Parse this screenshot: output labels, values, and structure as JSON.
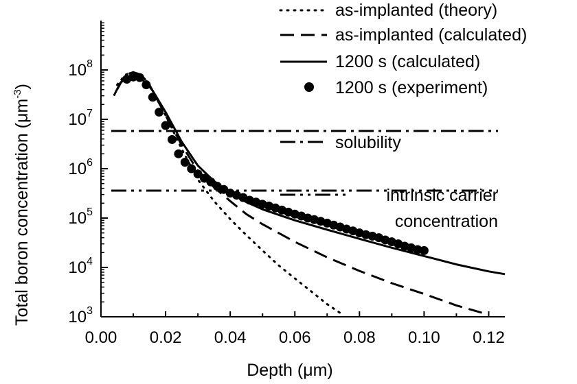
{
  "chart_data": {
    "type": "line",
    "xlabel": "Depth (μm)",
    "ylabel": "Total boron concentration (μm⁻³)",
    "xlim": [
      0.0,
      0.125
    ],
    "ylim_log10": [
      3,
      9
    ],
    "y_scale": "log",
    "x_ticks": [
      0.0,
      0.02,
      0.04,
      0.06,
      0.08,
      0.1,
      0.12
    ],
    "x_tick_labels": [
      "0.00",
      "0.02",
      "0.04",
      "0.06",
      "0.08",
      "0.10",
      "0.12"
    ],
    "y_ticks": [
      1000,
      10000,
      100000,
      1000000,
      10000000,
      100000000
    ],
    "y_tick_labels": [
      {
        "base": "10",
        "exp": "3"
      },
      {
        "base": "10",
        "exp": "4"
      },
      {
        "base": "10",
        "exp": "5"
      },
      {
        "base": "10",
        "exp": "6"
      },
      {
        "base": "10",
        "exp": "7"
      },
      {
        "base": "10",
        "exp": "8"
      }
    ],
    "grid": false,
    "legend_position": "top-right",
    "series": [
      {
        "name": "as-implanted (theory)",
        "style": "dotted",
        "x": [
          0.005,
          0.0075,
          0.01,
          0.0125,
          0.015,
          0.02,
          0.025,
          0.03,
          0.035,
          0.04,
          0.045,
          0.05,
          0.055,
          0.06,
          0.065,
          0.07,
          0.074
        ],
        "y": [
          50000000,
          80000000,
          90000000,
          80000000,
          50000000,
          12000000,
          2500000,
          600000,
          220000,
          95000,
          45000,
          22000,
          11000,
          6000,
          3300,
          1800,
          1200
        ]
      },
      {
        "name": "as-implanted (calculated)",
        "style": "dashed",
        "x": [
          0.005,
          0.0075,
          0.01,
          0.0125,
          0.015,
          0.02,
          0.025,
          0.03,
          0.035,
          0.04,
          0.045,
          0.05,
          0.06,
          0.07,
          0.08,
          0.09,
          0.1,
          0.11,
          0.12
        ],
        "y": [
          40000000,
          80000000,
          90000000,
          80000000,
          50000000,
          12000000,
          3000000,
          900000,
          420000,
          220000,
          120000,
          75000,
          33000,
          16000,
          8500,
          4800,
          2900,
          1700,
          1100
        ]
      },
      {
        "name": "1200 s (calculated)",
        "style": "solid",
        "x": [
          0.004,
          0.006,
          0.008,
          0.01,
          0.012,
          0.014,
          0.016,
          0.02,
          0.025,
          0.03,
          0.035,
          0.04,
          0.045,
          0.05,
          0.06,
          0.07,
          0.08,
          0.09,
          0.1,
          0.11,
          0.12,
          0.125
        ],
        "y": [
          30000000,
          55000000,
          68000000,
          72000000,
          68000000,
          55000000,
          38000000,
          14000000,
          3500000,
          1150000,
          560000,
          320000,
          210000,
          150000,
          90000,
          58000,
          38000,
          25000,
          17000,
          11500,
          8300,
          7300
        ]
      },
      {
        "name": "1200 s (experiment)",
        "style": "markers",
        "x": [
          0.008,
          0.01,
          0.012,
          0.014,
          0.016,
          0.018,
          0.02,
          0.022,
          0.024,
          0.026,
          0.028,
          0.03,
          0.032,
          0.034,
          0.036,
          0.038,
          0.04,
          0.042,
          0.044,
          0.046,
          0.048,
          0.05,
          0.052,
          0.054,
          0.056,
          0.058,
          0.06,
          0.062,
          0.064,
          0.066,
          0.068,
          0.07,
          0.072,
          0.074,
          0.076,
          0.078,
          0.08,
          0.082,
          0.084,
          0.086,
          0.088,
          0.09,
          0.092,
          0.094,
          0.096,
          0.098,
          0.1
        ],
        "y": [
          65000000,
          72000000,
          70000000,
          50000000,
          28000000,
          14000000,
          7500000,
          3900000,
          2000000,
          1350000,
          1000000,
          780000,
          640000,
          540000,
          440000,
          380000,
          320000,
          290000,
          260000,
          230000,
          210000,
          190000,
          175000,
          160000,
          145000,
          132000,
          120000,
          110000,
          100000,
          93000,
          86000,
          79000,
          72000,
          66000,
          60000,
          55000,
          50000,
          46000,
          43000,
          40000,
          36000,
          33000,
          30000,
          27000,
          25000,
          23000,
          22000
        ]
      }
    ],
    "reference_lines": [
      {
        "name": "solubility",
        "style": "dashdot",
        "y": 5800000
      },
      {
        "name": "intrinsic carrier concentration",
        "style": "dashdotdot",
        "y": 360000
      }
    ]
  },
  "legend": {
    "entries": [
      {
        "label": "as-implanted (theory)",
        "style": "dotted"
      },
      {
        "label": "as-implanted (calculated)",
        "style": "dashed"
      },
      {
        "label": "1200 s (calculated)",
        "style": "solid"
      },
      {
        "label": "1200 s (experiment)",
        "style": "markers"
      }
    ],
    "solubility_label": "solubility",
    "intrinsic_label_line1": "intrinsic carrier",
    "intrinsic_label_line2": "concentration"
  },
  "axes": {
    "xlabel_prefix": "Depth (",
    "xlabel_mu": "μ",
    "xlabel_suffix": "m)",
    "ylabel_prefix": "Total boron concentration (",
    "ylabel_mu": "μ",
    "ylabel_m": "m",
    "ylabel_exp": "-3",
    "ylabel_suffix": ")"
  }
}
